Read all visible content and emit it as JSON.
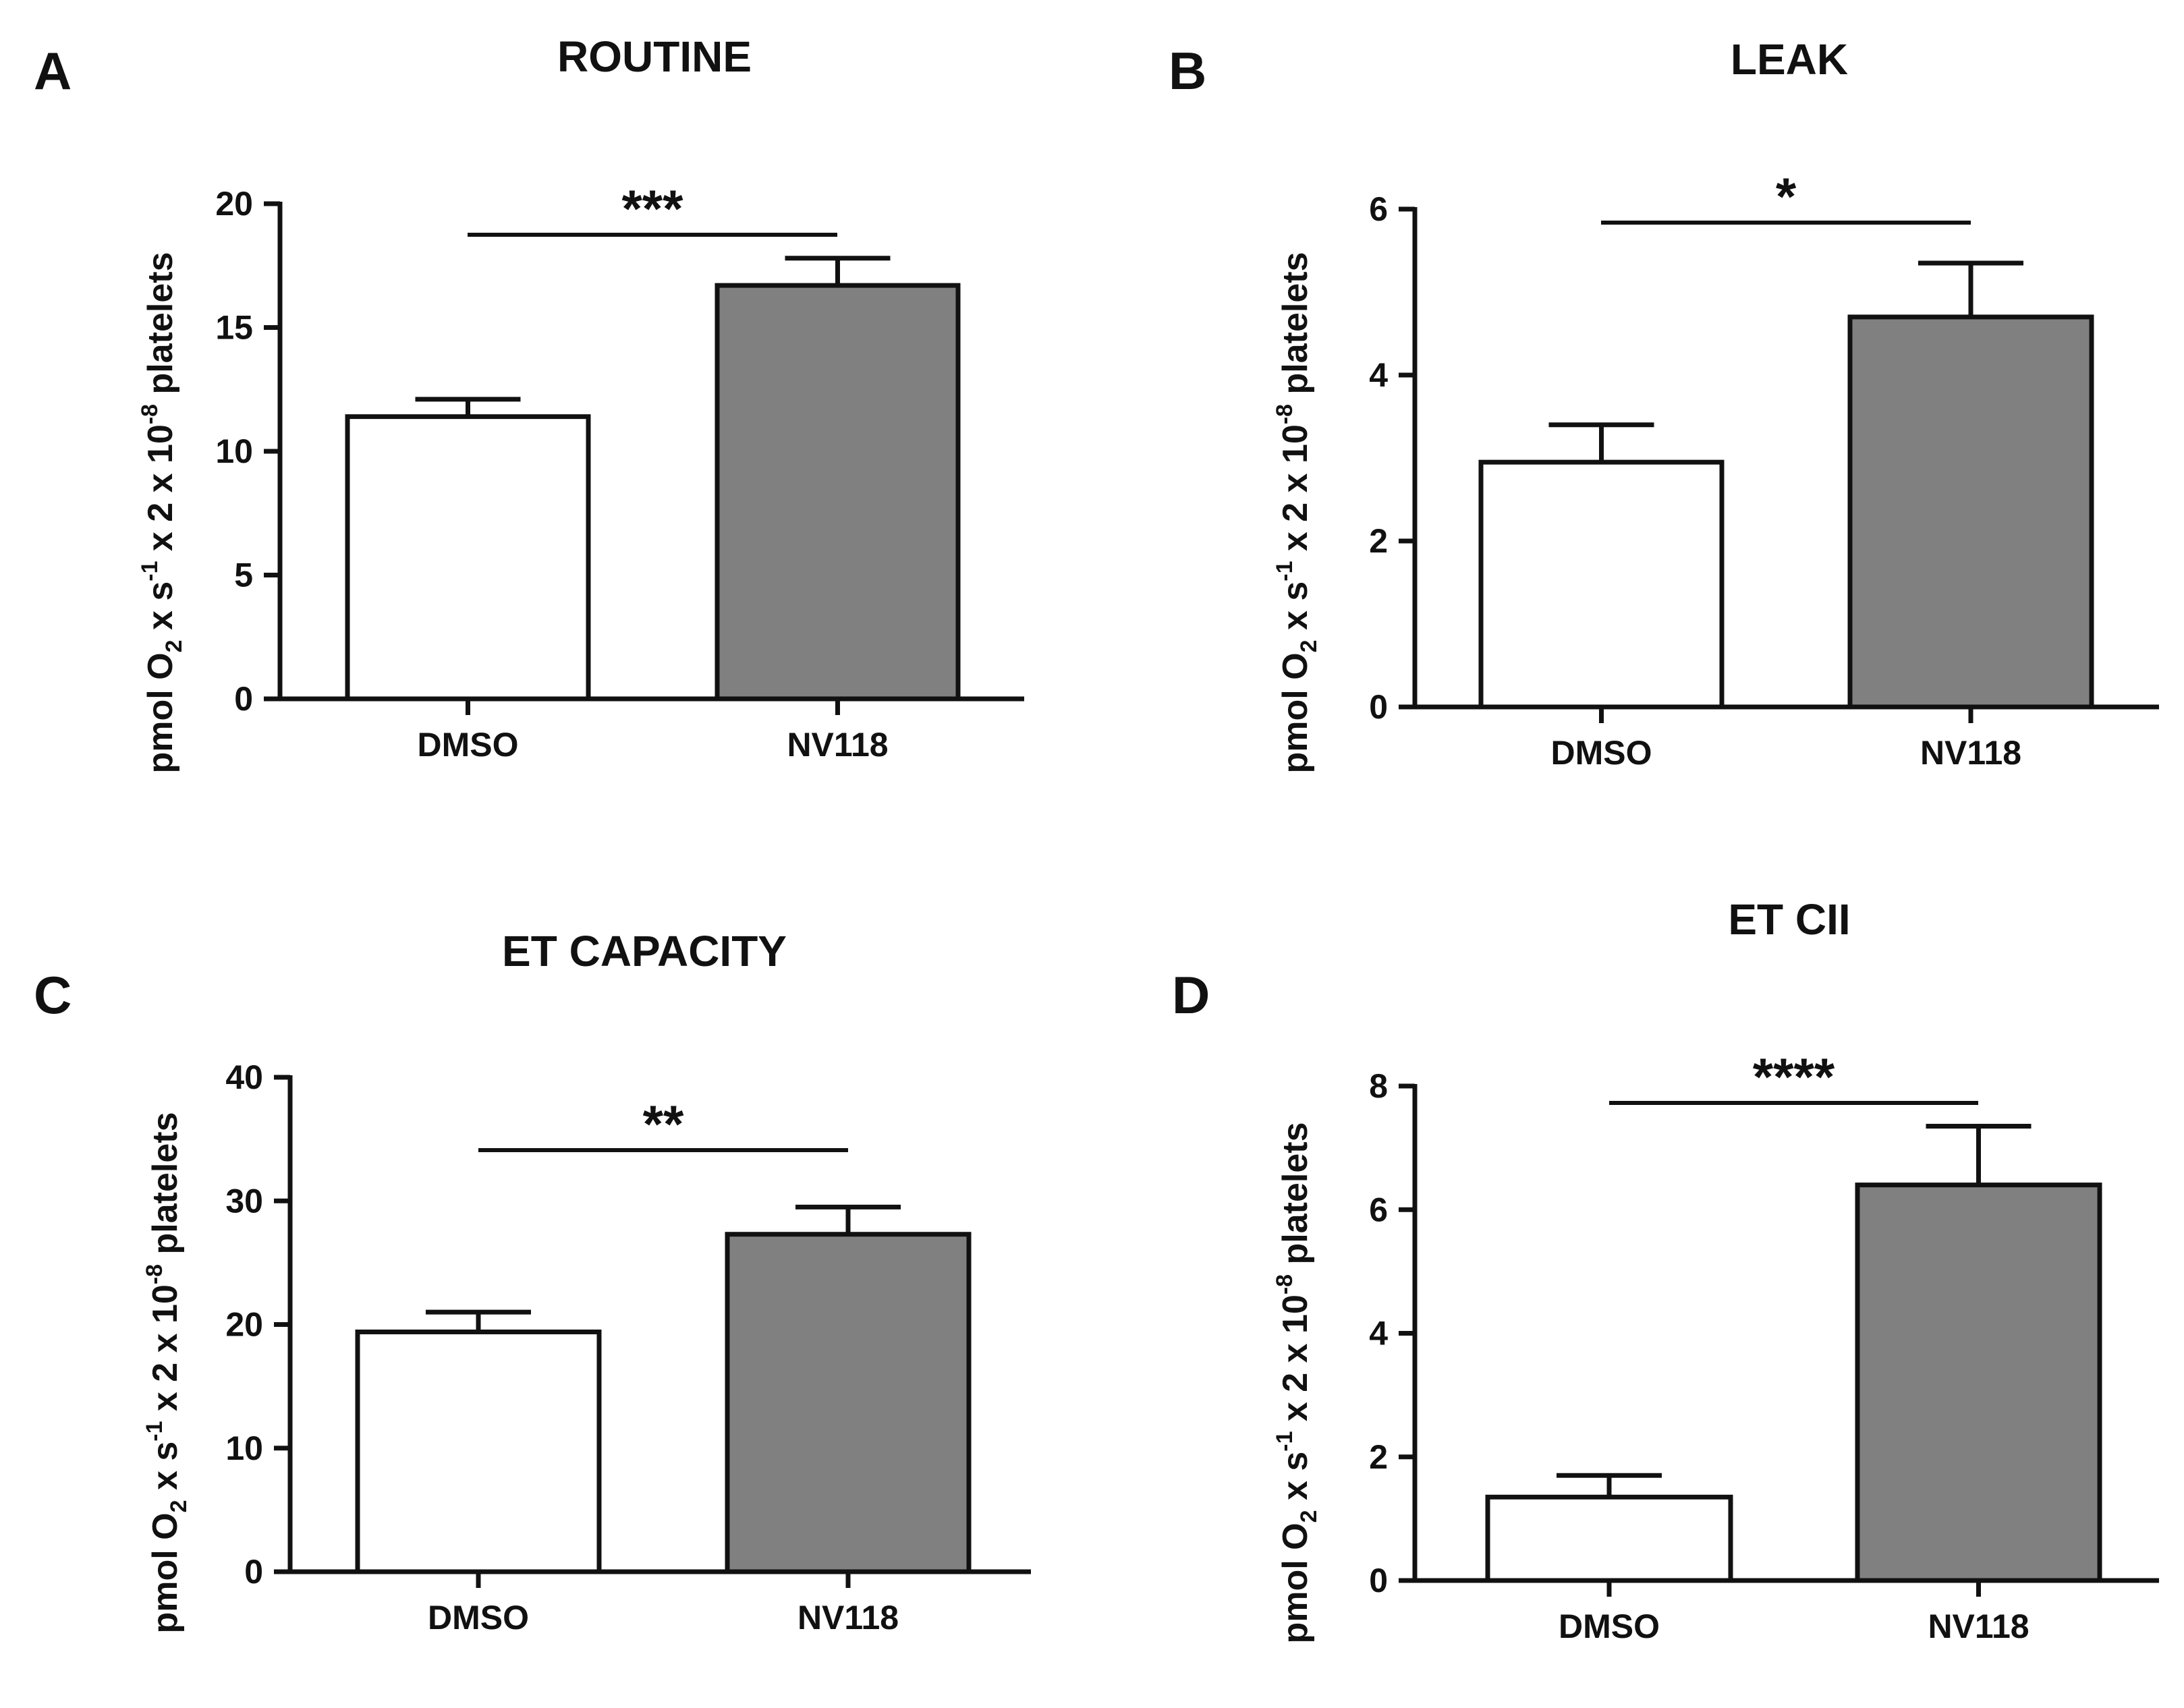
{
  "figure": {
    "panels": [
      "A",
      "B",
      "C",
      "D"
    ]
  },
  "chart_data": [
    {
      "panel": "A",
      "type": "bar",
      "title": "ROUTINE",
      "categories": [
        "DMSO",
        "NV118"
      ],
      "values": [
        11.4,
        16.7
      ],
      "errors": [
        0.7,
        1.1
      ],
      "bar_colors": [
        "#ffffff",
        "#808080"
      ],
      "significance": "***",
      "ylim": [
        0,
        20
      ],
      "yticks": [
        0,
        5,
        10,
        15,
        20
      ],
      "ylabel": {
        "a": "pmol O",
        "b": "2",
        "c": " x s",
        "d": "-1",
        "e": " x 2 x 10",
        "f": "-8",
        "g": " platelets"
      }
    },
    {
      "panel": "B",
      "type": "bar",
      "title": "LEAK",
      "categories": [
        "DMSO",
        "NV118"
      ],
      "values": [
        2.95,
        4.7
      ],
      "errors": [
        0.45,
        0.65
      ],
      "bar_colors": [
        "#ffffff",
        "#808080"
      ],
      "significance": "*",
      "ylim": [
        0,
        6
      ],
      "yticks": [
        0,
        2,
        4,
        6
      ],
      "ylabel": {
        "a": "pmol O",
        "b": "2",
        "c": " x s",
        "d": "-1",
        "e": " x 2 x 10",
        "f": "-8",
        "g": " platelets"
      }
    },
    {
      "panel": "C",
      "type": "bar",
      "title": "ET CAPACITY",
      "categories": [
        "DMSO",
        "NV118"
      ],
      "values": [
        19.4,
        27.3
      ],
      "errors": [
        1.6,
        2.2
      ],
      "bar_colors": [
        "#ffffff",
        "#808080"
      ],
      "significance": "**",
      "ylim": [
        0,
        40
      ],
      "yticks": [
        0,
        10,
        20,
        30,
        40
      ],
      "ylabel": {
        "a": "pmol O",
        "b": "2",
        "c": " x s",
        "d": "-1",
        "e": " x 2 x 10",
        "f": "-8",
        "g": " platelets"
      }
    },
    {
      "panel": "D",
      "type": "bar",
      "title": "ET CII",
      "categories": [
        "DMSO",
        "NV118"
      ],
      "values": [
        1.35,
        6.4
      ],
      "errors": [
        0.35,
        0.95
      ],
      "bar_colors": [
        "#ffffff",
        "#808080"
      ],
      "significance": "****",
      "ylim": [
        0,
        8
      ],
      "yticks": [
        0,
        2,
        4,
        6,
        8
      ],
      "ylabel": {
        "a": "pmol O",
        "b": "2",
        "c": " x s",
        "d": "-1",
        "e": " x 2 x 10",
        "f": "-8",
        "g": " platelets"
      }
    }
  ]
}
